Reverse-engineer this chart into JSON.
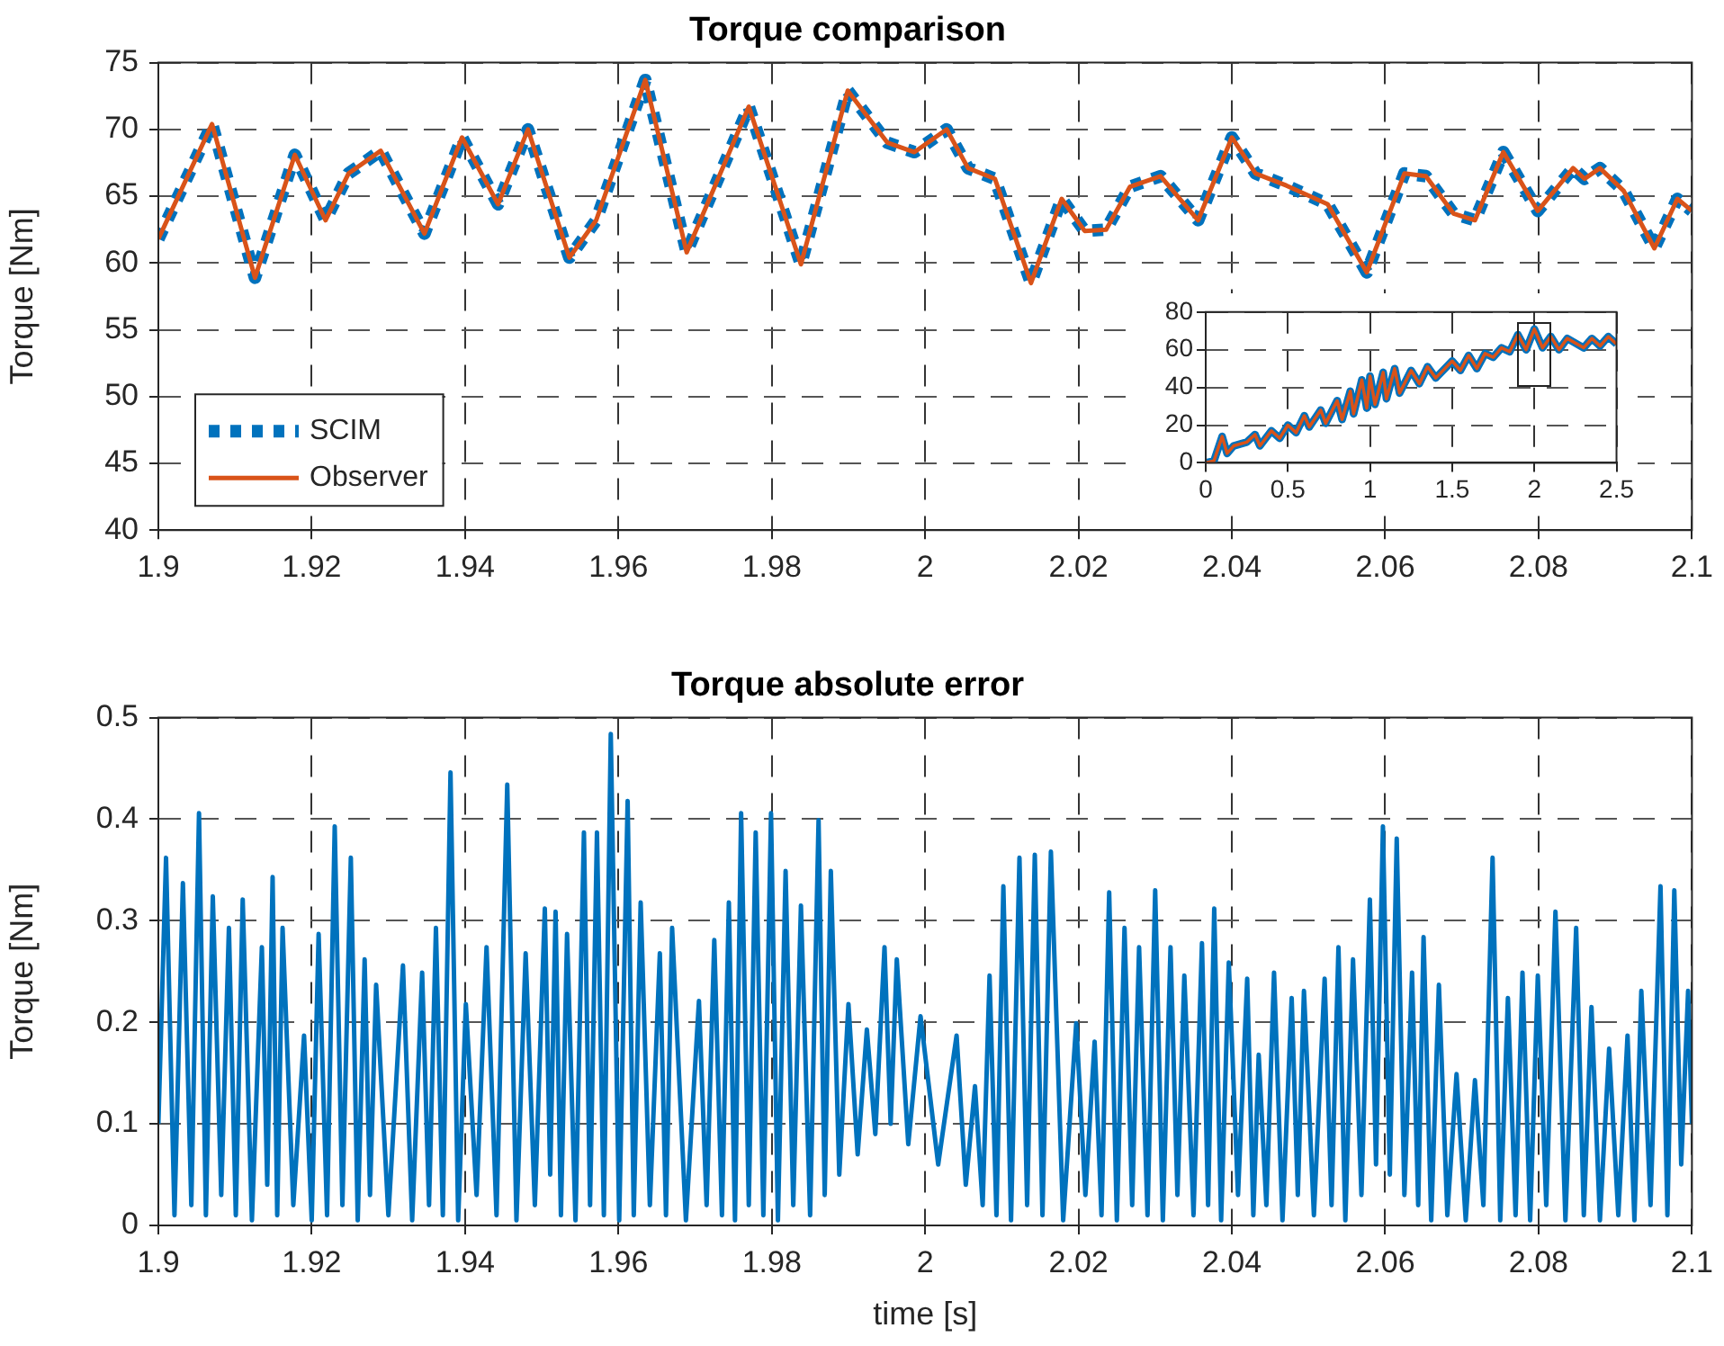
{
  "chart_data": [
    {
      "type": "line",
      "title": "Torque comparison",
      "ylabel": "Torque [Nm]",
      "xlim": [
        1.9,
        2.1
      ],
      "xticks": [
        1.9,
        1.92,
        1.94,
        1.96,
        1.98,
        2,
        2.02,
        2.04,
        2.06,
        2.08,
        2.1
      ],
      "ylim": [
        40,
        75
      ],
      "yticks": [
        40,
        45,
        50,
        55,
        60,
        65,
        70,
        75
      ],
      "grid": true,
      "legend": "bottom left",
      "marker": "none",
      "x": [
        1.9,
        1.9,
        1.907,
        1.9126,
        1.9178,
        1.9218,
        1.9248,
        1.929,
        1.9347,
        1.9396,
        1.9443,
        1.9482,
        1.9536,
        1.9571,
        1.9635,
        1.9689,
        1.977,
        1.9838,
        1.9899,
        1.9951,
        1.9986,
        2.0028,
        2.0056,
        2.0091,
        2.0138,
        2.0178,
        2.0208,
        2.0236,
        2.0267,
        2.0307,
        2.0356,
        2.04,
        2.0431,
        2.0471,
        2.0525,
        2.0576,
        2.0625,
        2.0653,
        2.0689,
        2.0717,
        2.0754,
        2.0799,
        2.0845,
        2.086,
        2.088,
        2.0911,
        2.0951,
        2.0981,
        2.1
      ],
      "series": [
        {
          "name": "SCIM",
          "color": "#0072bd",
          "line_style": "dotted",
          "values": [
            61.8,
            61.8,
            70.4,
            58.9,
            68.1,
            63.2,
            66.7,
            68.4,
            62.2,
            69.4,
            64.4,
            70.0,
            60.4,
            63.2,
            73.7,
            60.8,
            71.7,
            59.9,
            72.9,
            69.0,
            68.3,
            70.0,
            67.1,
            66.3,
            58.5,
            64.8,
            62.4,
            62.5,
            65.7,
            66.5,
            63.2,
            69.4,
            66.7,
            65.8,
            64.4,
            59.3,
            66.7,
            66.5,
            63.7,
            63.2,
            68.3,
            63.9,
            67.1,
            66.3,
            67.1,
            65.4,
            61.1,
            64.8,
            63.9
          ]
        },
        {
          "name": "Observer",
          "color": "#d95319",
          "line_style": "solid",
          "values": [
            61.8,
            61.8,
            70.4,
            58.9,
            68.1,
            63.2,
            66.7,
            68.4,
            62.2,
            69.4,
            64.4,
            70.0,
            60.4,
            63.2,
            73.7,
            60.8,
            71.7,
            59.9,
            72.9,
            69.0,
            68.3,
            70.0,
            67.1,
            66.3,
            58.5,
            64.8,
            62.4,
            62.5,
            65.7,
            66.5,
            63.2,
            69.4,
            66.7,
            65.8,
            64.4,
            59.3,
            66.7,
            66.5,
            63.7,
            63.2,
            68.3,
            63.9,
            67.1,
            66.3,
            67.1,
            65.4,
            61.1,
            64.8,
            63.9
          ]
        }
      ]
    },
    {
      "type": "line",
      "xlim": [
        0,
        2.5
      ],
      "xticks": [
        0,
        0.5,
        1,
        1.5,
        2,
        2.5
      ],
      "ylim": [
        0,
        80
      ],
      "yticks": [
        0,
        20,
        40,
        60,
        80
      ],
      "grid": true,
      "marker": "none",
      "x": [
        0,
        0.05,
        0.1,
        0.13,
        0.17,
        0.25,
        0.3,
        0.33,
        0.4,
        0.45,
        0.5,
        0.55,
        0.6,
        0.63,
        0.7,
        0.73,
        0.8,
        0.83,
        0.88,
        0.9,
        0.95,
        0.98,
        1.0,
        1.03,
        1.08,
        1.1,
        1.15,
        1.18,
        1.25,
        1.3,
        1.35,
        1.4,
        1.5,
        1.55,
        1.6,
        1.65,
        1.7,
        1.75,
        1.8,
        1.85,
        1.9,
        1.95,
        2.0,
        2.05,
        2.1,
        2.15,
        2.2,
        2.3,
        2.35,
        2.4,
        2.45,
        2.5
      ],
      "series": [
        {
          "color": "#0072bd",
          "values": [
            0,
            1,
            14,
            5,
            9,
            11,
            15,
            9,
            17,
            13,
            20,
            16,
            25,
            19,
            28,
            21,
            33,
            23,
            38,
            26,
            44,
            29,
            46,
            31,
            48,
            34,
            50,
            37,
            49,
            42,
            51,
            45,
            54,
            49,
            57,
            50,
            58,
            56,
            61,
            59,
            68,
            60,
            71,
            61,
            67,
            60,
            66,
            61,
            66,
            62,
            67,
            63
          ]
        },
        {
          "color": "#d95319",
          "values": [
            0,
            1,
            14,
            5,
            9,
            11,
            15,
            9,
            17,
            13,
            20,
            16,
            25,
            19,
            28,
            21,
            33,
            23,
            38,
            26,
            44,
            29,
            46,
            31,
            48,
            34,
            50,
            37,
            49,
            42,
            51,
            45,
            54,
            49,
            57,
            50,
            58,
            56,
            61,
            59,
            68,
            60,
            71,
            61,
            67,
            60,
            66,
            61,
            66,
            62,
            67,
            63
          ]
        }
      ]
    },
    {
      "type": "line",
      "title": "Torque absolute error",
      "xlabel": "time [s]",
      "ylabel": "Torque [Nm]",
      "xlim": [
        1.9,
        2.1
      ],
      "xticks": [
        1.9,
        1.92,
        1.94,
        1.96,
        1.98,
        2,
        2.02,
        2.04,
        2.06,
        2.08,
        2.1
      ],
      "ylim": [
        0,
        0.5
      ],
      "yticks": [
        0,
        0.1,
        0.2,
        0.3,
        0.4,
        0.5
      ],
      "grid": true,
      "marker": "none",
      "x": [
        1.9,
        1.901,
        1.9021,
        1.9032,
        1.9043,
        1.9053,
        1.9062,
        1.9071,
        1.9082,
        1.9092,
        1.9101,
        1.911,
        1.9122,
        1.9135,
        1.9142,
        1.9149,
        1.9155,
        1.9162,
        1.9176,
        1.919,
        1.92,
        1.9209,
        1.922,
        1.923,
        1.924,
        1.9251,
        1.926,
        1.9269,
        1.9276,
        1.9284,
        1.93,
        1.9319,
        1.9331,
        1.9344,
        1.9353,
        1.9362,
        1.9371,
        1.9381,
        1.9391,
        1.9401,
        1.9415,
        1.9428,
        1.9441,
        1.9455,
        1.9467,
        1.9479,
        1.9491,
        1.9504,
        1.9511,
        1.9518,
        1.9525,
        1.9533,
        1.9544,
        1.9555,
        1.9563,
        1.9572,
        1.9581,
        1.959,
        1.9601,
        1.9612,
        1.962,
        1.9629,
        1.9641,
        1.9654,
        1.9662,
        1.967,
        1.9688,
        1.9705,
        1.9715,
        1.9725,
        1.9735,
        1.9744,
        1.9752,
        1.976,
        1.977,
        1.9779,
        1.9789,
        1.9799,
        1.9808,
        1.9818,
        1.9828,
        1.9838,
        1.985,
        1.9861,
        1.9869,
        1.9877,
        1.9888,
        1.99,
        1.9912,
        1.9924,
        1.9935,
        1.9947,
        1.9955,
        1.9963,
        1.9978,
        1.9994,
        2.0017,
        2.0041,
        2.0053,
        2.0065,
        2.0075,
        2.0084,
        2.0093,
        2.0102,
        2.0112,
        2.0123,
        2.0133,
        2.0143,
        2.0153,
        2.0164,
        2.018,
        2.0197,
        2.0209,
        2.0221,
        2.023,
        2.024,
        2.025,
        2.026,
        2.027,
        2.0279,
        2.029,
        2.03,
        2.031,
        2.032,
        2.0329,
        2.0338,
        2.035,
        2.0361,
        2.0369,
        2.0377,
        2.0386,
        2.0396,
        2.0408,
        2.042,
        2.0428,
        2.0435,
        2.0445,
        2.0455,
        2.0466,
        2.0478,
        2.0486,
        2.0494,
        2.0507,
        2.0521,
        2.053,
        2.0539,
        2.0548,
        2.0558,
        2.0569,
        2.058,
        2.0588,
        2.0597,
        2.0606,
        2.0615,
        2.0625,
        2.0635,
        2.0643,
        2.065,
        2.066,
        2.067,
        2.0681,
        2.0693,
        2.0705,
        2.0717,
        2.0728,
        2.074,
        2.075,
        2.076,
        2.077,
        2.0779,
        2.0789,
        2.0799,
        2.081,
        2.0822,
        2.0835,
        2.0849,
        2.0859,
        2.0869,
        2.088,
        2.0892,
        2.0904,
        2.0916,
        2.0925,
        2.0934,
        2.0946,
        2.0959,
        2.0968,
        2.0977,
        2.0986,
        2.0995,
        2.1
      ],
      "series": [
        {
          "color": "#0072bd",
          "values": [
            0.1,
            0.362,
            0.01,
            0.337,
            0.02,
            0.406,
            0.01,
            0.324,
            0.03,
            0.293,
            0.01,
            0.321,
            0.005,
            0.274,
            0.04,
            0.343,
            0.01,
            0.293,
            0.02,
            0.187,
            0.005,
            0.287,
            0.01,
            0.393,
            0.02,
            0.362,
            0.005,
            0.262,
            0.03,
            0.237,
            0.01,
            0.256,
            0.005,
            0.249,
            0.02,
            0.293,
            0.01,
            0.446,
            0.005,
            0.218,
            0.03,
            0.274,
            0.01,
            0.434,
            0.005,
            0.268,
            0.02,
            0.312,
            0.05,
            0.309,
            0.01,
            0.287,
            0.005,
            0.387,
            0.02,
            0.387,
            0.01,
            0.484,
            0.005,
            0.418,
            0.01,
            0.318,
            0.02,
            0.268,
            0.01,
            0.293,
            0.005,
            0.221,
            0.02,
            0.281,
            0.01,
            0.318,
            0.005,
            0.406,
            0.02,
            0.387,
            0.01,
            0.406,
            0.005,
            0.349,
            0.02,
            0.315,
            0.01,
            0.399,
            0.03,
            0.349,
            0.05,
            0.218,
            0.07,
            0.193,
            0.09,
            0.274,
            0.1,
            0.262,
            0.08,
            0.206,
            0.06,
            0.187,
            0.04,
            0.137,
            0.02,
            0.246,
            0.01,
            0.334,
            0.005,
            0.362,
            0.02,
            0.365,
            0.01,
            0.368,
            0.005,
            0.199,
            0.03,
            0.181,
            0.01,
            0.328,
            0.005,
            0.293,
            0.02,
            0.274,
            0.01,
            0.33,
            0.005,
            0.274,
            0.03,
            0.246,
            0.01,
            0.278,
            0.02,
            0.312,
            0.005,
            0.259,
            0.03,
            0.243,
            0.01,
            0.168,
            0.02,
            0.249,
            0.005,
            0.224,
            0.03,
            0.231,
            0.01,
            0.243,
            0.02,
            0.274,
            0.005,
            0.262,
            0.03,
            0.321,
            0.06,
            0.393,
            0.05,
            0.381,
            0.03,
            0.249,
            0.02,
            0.284,
            0.005,
            0.237,
            0.01,
            0.149,
            0.005,
            0.143,
            0.02,
            0.362,
            0.005,
            0.224,
            0.01,
            0.249,
            0.005,
            0.246,
            0.02,
            0.309,
            0.005,
            0.293,
            0.01,
            0.215,
            0.005,
            0.174,
            0.01,
            0.187,
            0.005,
            0.231,
            0.02,
            0.334,
            0.01,
            0.33,
            0.06,
            0.231,
            0.1
          ]
        }
      ]
    }
  ]
}
